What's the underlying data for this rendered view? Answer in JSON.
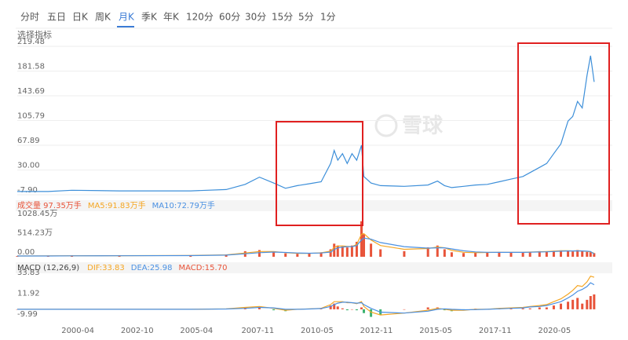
{
  "tabs": [
    "分时",
    "五日",
    "日K",
    "周K",
    "月K",
    "季K",
    "年K",
    "120分",
    "60分",
    "30分",
    "15分",
    "5分",
    "1分"
  ],
  "indicator_label": "选择指标",
  "watermark": "雪球",
  "chart_data": [
    {
      "type": "line",
      "x": [
        1997.7,
        1999,
        2000,
        2002,
        2005,
        2006.5,
        2007.3,
        2007.9,
        2008.5,
        2009,
        2009.5,
        2010,
        2010.5,
        2010.9,
        2011.05,
        2011.2,
        2011.4,
        2011.6,
        2011.8,
        2012,
        2012.2,
        2012.3,
        2012.6,
        2013,
        2014,
        2015,
        2015.4,
        2015.7,
        2016,
        2016.5,
        2017,
        2017.5,
        2018,
        2018.5,
        2019,
        2019.3,
        2019.7,
        2020,
        2020.3,
        2020.6,
        2020.9,
        2021.1,
        2021.3,
        2021.5,
        2021.7,
        2021.85,
        2022
      ],
      "values": [
        -3,
        -3,
        -1,
        -2,
        -2,
        0,
        8,
        19,
        10,
        2,
        6,
        9,
        12,
        40,
        60,
        45,
        55,
        40,
        55,
        45,
        68,
        20,
        10,
        6,
        5,
        7,
        13,
        6,
        3,
        5,
        7,
        8,
        12,
        16,
        20,
        26,
        34,
        40,
        55,
        70,
        105,
        112,
        135,
        125,
        175,
        205,
        165
      ],
      "color": "#3d8fd9",
      "xlim": [
        1997.7,
        2022.6
      ],
      "ylim": [
        -7.9,
        219.48
      ],
      "yticks": [
        {
          "value": -7.9,
          "label": "-7.90"
        },
        {
          "value": 30,
          "label": "30.00"
        },
        67.89,
        105.79,
        143.69,
        181.58,
        219.48
      ],
      "grid": true
    },
    {
      "type": "bar",
      "x": [
        1997.7,
        1999,
        2000,
        2002,
        2005,
        2006.5,
        2007.3,
        2007.9,
        2008.5,
        2009,
        2009.5,
        2010,
        2010.5,
        2010.9,
        2011.05,
        2011.2,
        2011.4,
        2011.6,
        2011.8,
        2012,
        2012.2,
        2012.3,
        2012.6,
        2013,
        2014,
        2015,
        2015.4,
        2015.7,
        2016,
        2016.5,
        2017,
        2017.5,
        2018,
        2018.5,
        2019,
        2019.3,
        2019.7,
        2020,
        2020.3,
        2020.6,
        2020.9,
        2021.1,
        2021.3,
        2021.5,
        2021.7,
        2021.85,
        2022
      ],
      "series": [
        {
          "name": "成交量 97.35万手",
          "type": "bar",
          "color": "#e8543a",
          "values": [
            20,
            25,
            30,
            30,
            40,
            60,
            150,
            180,
            120,
            90,
            80,
            100,
            120,
            200,
            350,
            300,
            280,
            250,
            300,
            400,
            950,
            600,
            350,
            200,
            150,
            250,
            300,
            200,
            120,
            100,
            110,
            120,
            130,
            110,
            120,
            130,
            150,
            140,
            160,
            170,
            150,
            140,
            180,
            150,
            130,
            120,
            97.35
          ]
        },
        {
          "name": "MA5:91.83万手",
          "type": "line",
          "color": "#f5a623",
          "values": [
            20,
            23,
            27,
            30,
            35,
            50,
            100,
            140,
            140,
            110,
            90,
            90,
            105,
            150,
            250,
            290,
            290,
            280,
            270,
            330,
            600,
            620,
            450,
            300,
            200,
            220,
            260,
            240,
            170,
            120,
            110,
            115,
            120,
            120,
            118,
            125,
            135,
            140,
            150,
            160,
            160,
            155,
            160,
            155,
            145,
            130,
            91.83
          ]
        },
        {
          "name": "MA10:72.79万手",
          "type": "line",
          "color": "#4a90e2",
          "values": [
            20,
            22,
            25,
            28,
            32,
            45,
            80,
            110,
            125,
            115,
            100,
            95,
            100,
            125,
            190,
            240,
            260,
            270,
            270,
            300,
            450,
            500,
            470,
            380,
            270,
            230,
            240,
            240,
            210,
            160,
            130,
            120,
            118,
            118,
            118,
            122,
            128,
            133,
            140,
            150,
            155,
            155,
            158,
            155,
            150,
            140,
            72.79
          ]
        }
      ],
      "xlim": [
        1997.7,
        2022.6
      ],
      "ylim": [
        0,
        1028.45
      ],
      "yticks": [
        {
          "value": 0,
          "label": "0.00"
        },
        {
          "value": 514.23,
          "label": "514.23万"
        },
        {
          "value": 1028.45,
          "label": "1028.45万"
        }
      ],
      "grid": false
    },
    {
      "type": "line",
      "title": "MACD (12,26,9)",
      "x": [
        1997.7,
        1999,
        2000,
        2002,
        2005,
        2006.5,
        2007.3,
        2007.9,
        2008.5,
        2009,
        2009.5,
        2010,
        2010.5,
        2010.9,
        2011.05,
        2011.2,
        2011.4,
        2011.6,
        2011.8,
        2012,
        2012.2,
        2012.3,
        2012.6,
        2013,
        2014,
        2015,
        2015.4,
        2015.7,
        2016,
        2016.5,
        2017,
        2017.5,
        2018,
        2018.5,
        2019,
        2019.3,
        2019.7,
        2020,
        2020.3,
        2020.6,
        2020.9,
        2021.1,
        2021.3,
        2021.5,
        2021.7,
        2021.85,
        2022
      ],
      "series": [
        {
          "name": "DIF:33.83",
          "type": "line",
          "color": "#f5a623",
          "values": [
            0,
            0,
            0,
            0,
            0,
            0.5,
            2,
            3,
            1,
            -1,
            0,
            0.5,
            1,
            5,
            8,
            8,
            8,
            7,
            7,
            6,
            8,
            3,
            -3,
            -6,
            -4,
            -1,
            1,
            0,
            -1,
            -1,
            0,
            0,
            1,
            1.5,
            2,
            3,
            4,
            5,
            8,
            11,
            16,
            20,
            25,
            24,
            29,
            35,
            33.83
          ]
        },
        {
          "name": "DEA:25.98",
          "type": "line",
          "color": "#4a90e2",
          "values": [
            0,
            0,
            0,
            0,
            0,
            0.3,
            1,
            2,
            1.5,
            0,
            0,
            0.3,
            0.8,
            3,
            5,
            6.5,
            7.5,
            7.5,
            7,
            6.5,
            7,
            5,
            1,
            -3,
            -4,
            -2,
            0,
            0.5,
            0,
            -0.5,
            -0.3,
            0,
            0.5,
            1,
            1.5,
            2.5,
            3,
            4,
            6,
            8,
            12,
            15,
            19,
            21,
            24,
            28,
            25.98
          ]
        },
        {
          "name": "MACD:15.70",
          "type": "bar",
          "color": "#e8543a",
          "negative_color": "#3cb371",
          "values": [
            0,
            0,
            0,
            0,
            0,
            0.4,
            2,
            2,
            -1,
            -2,
            0,
            0.4,
            0.4,
            4,
            6,
            3,
            1,
            -1,
            0,
            -1,
            2,
            -4,
            -8,
            -6,
            0,
            2,
            2,
            -1,
            -2,
            -1,
            0.6,
            0,
            1,
            1,
            1,
            1,
            2,
            2,
            4,
            6,
            8,
            10,
            12,
            6,
            10,
            14,
            15.7
          ]
        }
      ],
      "xlim": [
        1997.7,
        2022.6
      ],
      "ylim": [
        -15,
        39.7
      ],
      "yticks": [
        33.83,
        11.92,
        -9.99
      ],
      "xticks": [
        {
          "value": 2000.25,
          "label": "2000-04"
        },
        {
          "value": 2002.75,
          "label": "2002-10"
        },
        {
          "value": 2005.25,
          "label": "2005-04"
        },
        {
          "value": 2007.83,
          "label": "2007-11"
        },
        {
          "value": 2010.33,
          "label": "2010-05"
        },
        {
          "value": 2012.83,
          "label": "2012-11"
        },
        {
          "value": 2015.33,
          "label": "2015-05"
        },
        {
          "value": 2017.83,
          "label": "2017-11"
        },
        {
          "value": 2020.33,
          "label": "2020-05"
        }
      ],
      "grid": false
    }
  ]
}
